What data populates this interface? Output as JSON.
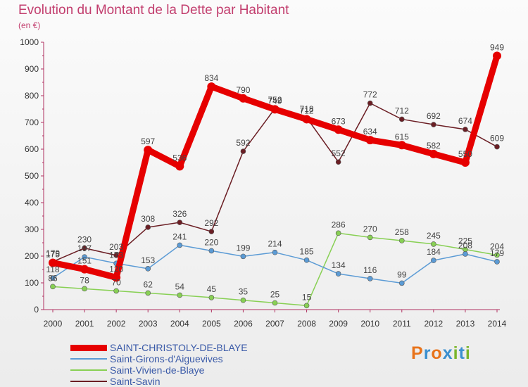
{
  "header": {
    "title": "Evolution du Montant de la Dette par Habitant",
    "subtitle": "(en €)"
  },
  "logo": {
    "text": "Proxiti",
    "colors": [
      "#e8731a",
      "#3a8fcf",
      "#e8731a",
      "#3a8fcf",
      "#7ab52b",
      "#3a8fcf",
      "#7ab52b"
    ]
  },
  "chart_data": {
    "type": "line",
    "title": "Evolution du Montant de la Dette par Habitant",
    "subtitle": "(en €)",
    "x": [
      "2000",
      "2001",
      "2002",
      "2003",
      "2004",
      "2005",
      "2006",
      "2007",
      "2008",
      "2009",
      "2010",
      "2011",
      "2012",
      "2013",
      "2014"
    ],
    "ylim": [
      0,
      1000
    ],
    "yticks": [
      "0",
      "100",
      "200",
      "300",
      "400",
      "500",
      "600",
      "700",
      "800",
      "900",
      "1000"
    ],
    "grid": false,
    "legend_position": "bottom-left",
    "series": [
      {
        "name": "SAINT-CHRISTOLY-DE-BLAYE",
        "color": "#e60000",
        "values": [
          175,
          151,
          120,
          597,
          536,
          834,
          790,
          749,
          712,
          673,
          634,
          615,
          582,
          550,
          949
        ],
        "labels": [
          "175",
          "151",
          "120",
          "597",
          "536",
          "834",
          "790",
          "749",
          "712",
          "673",
          "634",
          "615",
          "582",
          "550",
          "949"
        ]
      },
      {
        "name": "Saint-Girons-d'Aiguevives",
        "color": "#5b9bd5",
        "values": [
          118,
          197,
          173,
          153,
          241,
          220,
          199,
          214,
          185,
          134,
          116,
          99,
          184,
          208,
          179
        ],
        "labels": [
          "118",
          "197",
          "173",
          "153",
          "241",
          "220",
          "199",
          "214",
          "185",
          "134",
          "116",
          "99",
          "184",
          "208",
          "179"
        ]
      },
      {
        "name": "Saint-Vivien-de-Blaye",
        "color": "#88d054",
        "values": [
          86,
          78,
          70,
          62,
          54,
          45,
          35,
          25,
          15,
          286,
          270,
          258,
          245,
          225,
          204
        ],
        "labels": [
          "86",
          "78",
          "70",
          "62",
          "54",
          "45",
          "35",
          "25",
          "15",
          "286",
          "270",
          "258",
          "245",
          "225",
          "204"
        ]
      },
      {
        "name": "Saint-Savin",
        "color": "#6b1e24",
        "values": [
          179,
          230,
          203,
          308,
          326,
          292,
          592,
          752,
          718,
          552,
          772,
          712,
          692,
          674,
          609
        ],
        "labels": [
          "179",
          "230",
          "203",
          "308",
          "326",
          "292",
          "592",
          "752",
          "718",
          "552",
          "772",
          "712",
          "692",
          "674",
          "609"
        ]
      }
    ]
  }
}
